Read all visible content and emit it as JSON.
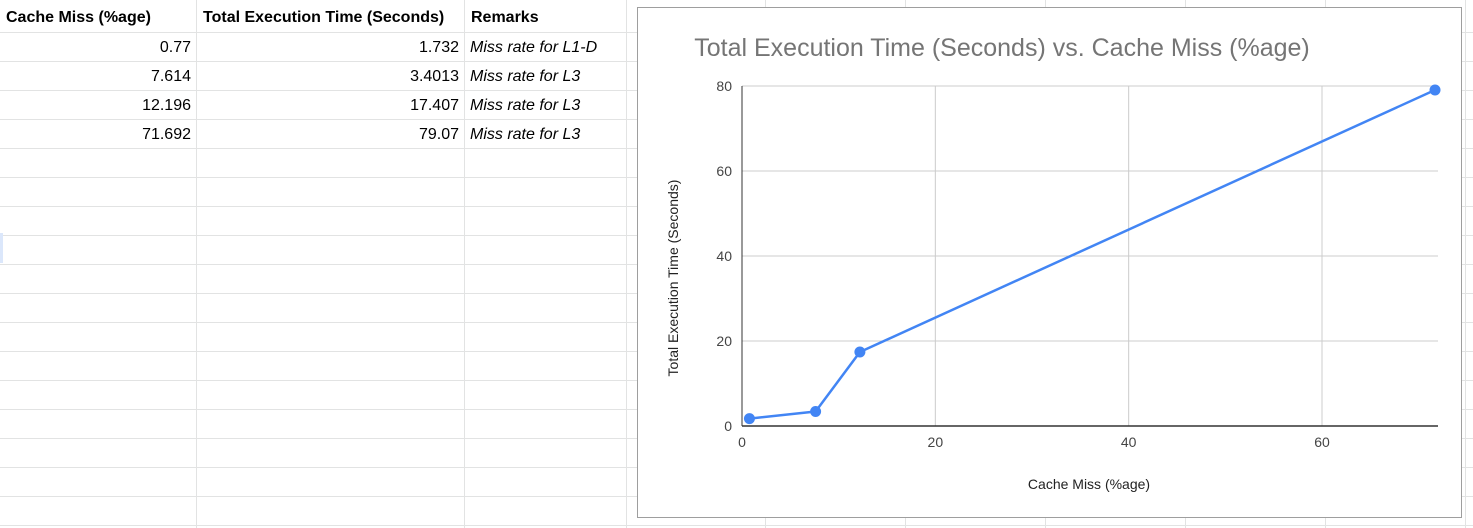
{
  "sheet": {
    "headers": [
      "Cache Miss (%age)",
      "Total Execution Time (Seconds)",
      "Remarks"
    ],
    "rows": [
      {
        "cache_miss": "0.77",
        "exec_time": "1.732",
        "remarks": "Miss rate for L1-D"
      },
      {
        "cache_miss": "7.614",
        "exec_time": "3.4013",
        "remarks": "Miss rate for L3"
      },
      {
        "cache_miss": "12.196",
        "exec_time": "17.407",
        "remarks": "Miss rate for L3"
      },
      {
        "cache_miss": "71.692",
        "exec_time": "79.07",
        "remarks": "Miss rate for L3"
      }
    ]
  },
  "chart_data": {
    "type": "line",
    "title": "Total Execution Time (Seconds) vs. Cache Miss (%age)",
    "xlabel": "Cache Miss (%age)",
    "ylabel": "Total Execution Time (Seconds)",
    "x": [
      0.77,
      7.614,
      12.196,
      71.692
    ],
    "series": [
      {
        "values": [
          1.732,
          3.4013,
          17.407,
          79.07
        ],
        "color": "#4285f4"
      }
    ],
    "xlim": [
      0,
      72
    ],
    "ylim": [
      0,
      80
    ],
    "xticks": [
      0,
      20,
      40,
      60
    ],
    "yticks": [
      0,
      20,
      40,
      60,
      80
    ],
    "grid": true,
    "markers": true,
    "legend": "none"
  },
  "colors": {
    "line": "#4285f4",
    "gridline": "#cccccc",
    "axis": "#333333",
    "title": "#757575",
    "cell_border": "#e2e3e3"
  }
}
